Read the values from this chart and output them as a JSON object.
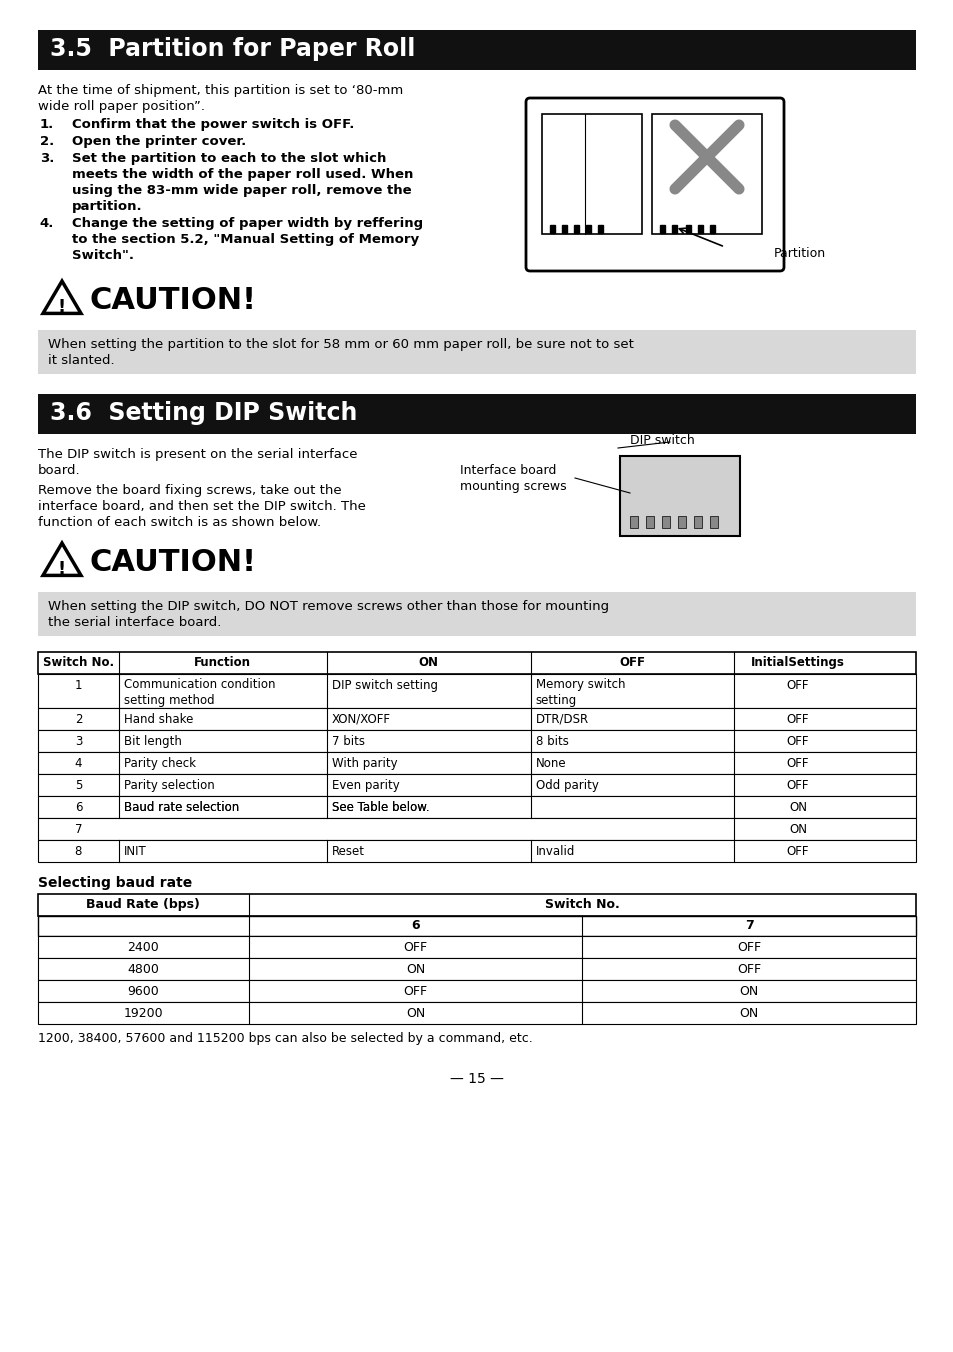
{
  "page_bg": "#ffffff",
  "section1_title": "3.5  Partition for Paper Roll",
  "section1_body_line1": "At the time of shipment, this partition is set to ‘80-mm",
  "section1_body_line2": "wide roll paper position”.",
  "section1_items": [
    "Confirm that the power switch is OFF.",
    "Open the printer cover.",
    "Set the partition to each to the slot which\nmeets the width of the paper roll used. When\nusing the 83-mm wide paper roll, remove the\npartition.",
    "Change the setting of paper width by reffering\nto the section 5.2, \"Manual Setting of Memory\nSwitch\"."
  ],
  "partition_label": "Partition",
  "caution1_header": "CAUTION!",
  "caution1_text": "When setting the partition to the slot for 58 mm or 60 mm paper roll, be sure not to set\nit slanted.",
  "caution_bg": "#d8d8d8",
  "section2_title": "3.6  Setting DIP Switch",
  "section2_body1_line1": "The DIP switch is present on the serial interface",
  "section2_body1_line2": "board.",
  "section2_body2": "Remove the board fixing screws, take out the\ninterface board, and then set the DIP switch. The\nfunction of each switch is as shown below.",
  "dip_label1": "DIP switch",
  "dip_label2": "Interface board\nmounting screws",
  "caution2_header": "CAUTION!",
  "caution2_text": "When setting the DIP switch, DO NOT remove screws other than those for mounting\nthe serial interface board.",
  "table1_headers": [
    "Switch No.",
    "Function",
    "ON",
    "OFF",
    "InitialSettings"
  ],
  "table1_rows": [
    [
      "1",
      "Communication condition\nsetting method",
      "DIP switch setting",
      "Memory switch\nsetting",
      "OFF"
    ],
    [
      "2",
      "Hand shake",
      "XON/XOFF",
      "DTR/DSR",
      "OFF"
    ],
    [
      "3",
      "Bit length",
      "7 bits",
      "8 bits",
      "OFF"
    ],
    [
      "4",
      "Parity check",
      "With parity",
      "None",
      "OFF"
    ],
    [
      "5",
      "Parity selection",
      "Even parity",
      "Odd parity",
      "OFF"
    ],
    [
      "6",
      "Baud rate selection",
      "See Table below.",
      "",
      "ON"
    ],
    [
      "7",
      "",
      "",
      "",
      "ON"
    ],
    [
      "8",
      "INIT",
      "Reset",
      "Invalid",
      "OFF"
    ]
  ],
  "baud_title": "Selecting baud rate",
  "baud_rows": [
    [
      "2400",
      "OFF",
      "OFF"
    ],
    [
      "4800",
      "ON",
      "OFF"
    ],
    [
      "9600",
      "OFF",
      "ON"
    ],
    [
      "19200",
      "ON",
      "ON"
    ]
  ],
  "baud_note": "1200, 38400, 57600 and 115200 bps can also be selected by a command, etc.",
  "page_number": "— 15 —"
}
